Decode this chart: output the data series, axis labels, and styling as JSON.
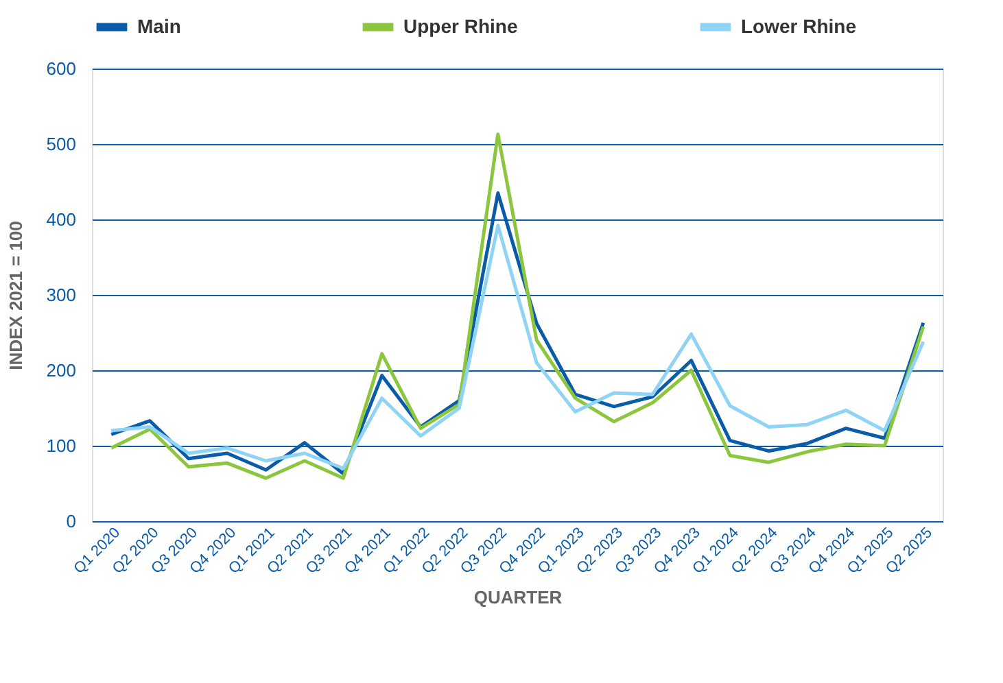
{
  "chart_data": {
    "type": "line",
    "xlabel": "QUARTER",
    "ylabel": "INDEX 2021 = 100",
    "categories": [
      "Q1 2020",
      "Q2 2020",
      "Q3 2020",
      "Q4 2020",
      "Q1 2021",
      "Q2 2021",
      "Q3 2021",
      "Q4 2021",
      "Q1 2022",
      "Q2 2022",
      "Q3 2022",
      "Q4 2022",
      "Q1 2023",
      "Q2 2023",
      "Q3 2023",
      "Q4 2023",
      "Q1 2024",
      "Q2 2024",
      "Q3 2024",
      "Q4 2024",
      "Q1 2025",
      "Q2 2025"
    ],
    "series": [
      {
        "name": "Main",
        "color": "#0a5ca8",
        "values": [
          115,
          133,
          83,
          90,
          68,
          104,
          63,
          193,
          125,
          160,
          435,
          262,
          168,
          152,
          165,
          213,
          107,
          93,
          103,
          123,
          110,
          263
        ]
      },
      {
        "name": "Upper Rhine",
        "color": "#8cc63f",
        "values": [
          97,
          122,
          72,
          77,
          57,
          80,
          57,
          222,
          123,
          155,
          513,
          240,
          163,
          132,
          157,
          200,
          87,
          78,
          92,
          102,
          100,
          258
        ]
      },
      {
        "name": "Lower Rhine",
        "color": "#8fd3f5",
        "values": [
          120,
          125,
          90,
          97,
          80,
          90,
          70,
          163,
          113,
          150,
          392,
          210,
          145,
          170,
          168,
          248,
          153,
          125,
          128,
          147,
          120,
          238
        ]
      }
    ],
    "ylim": [
      0,
      600
    ],
    "yticks": [
      0,
      100,
      200,
      300,
      400,
      500,
      600
    ],
    "grid": "y",
    "legend": "top",
    "line_style": "solid",
    "marker": "none"
  }
}
